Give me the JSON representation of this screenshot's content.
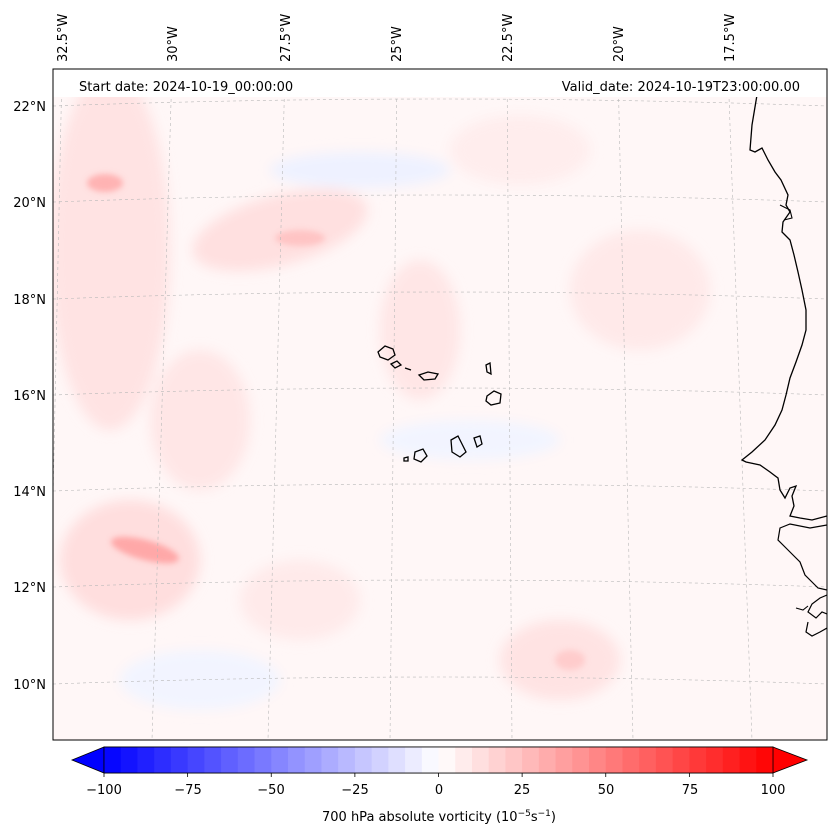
{
  "map": {
    "start_date": "Start date: 2024-10-19_00:00:00",
    "valid_date": "Valid_date: 2024-10-19T23:00:00.00",
    "lon_labels": [
      "32.5°W",
      "30°W",
      "27.5°W",
      "25°W",
      "22.5°W",
      "20°W",
      "17.5°W"
    ],
    "lat_labels": [
      "22°N",
      "20°N",
      "18°N",
      "16°N",
      "14°N",
      "12°N",
      "10°N"
    ],
    "field": "700 hPa absolute vorticity",
    "units": "10^-5 s^-1"
  },
  "colorbar": {
    "title_prefix": "700 hPa absolute vorticity (10",
    "title_exp1": "−5",
    "title_mid": "s",
    "title_exp2": "−1",
    "title_suffix": ")",
    "min": -100,
    "max": 100,
    "ticks": [
      "−100",
      "−75",
      "−50",
      "−25",
      "0",
      "25",
      "50",
      "75",
      "100"
    ],
    "low_color": "#0000ff",
    "high_color": "#ff0000",
    "mid_color": "#ffffff"
  },
  "colors": {
    "coast": "#000000",
    "grid": "#b0b0b0",
    "weak_positive": "#ffecec",
    "moderate_positive": "#ffcfcf",
    "strong_positive": "#ff9f9f",
    "weak_negative": "#f1f4ff"
  }
}
